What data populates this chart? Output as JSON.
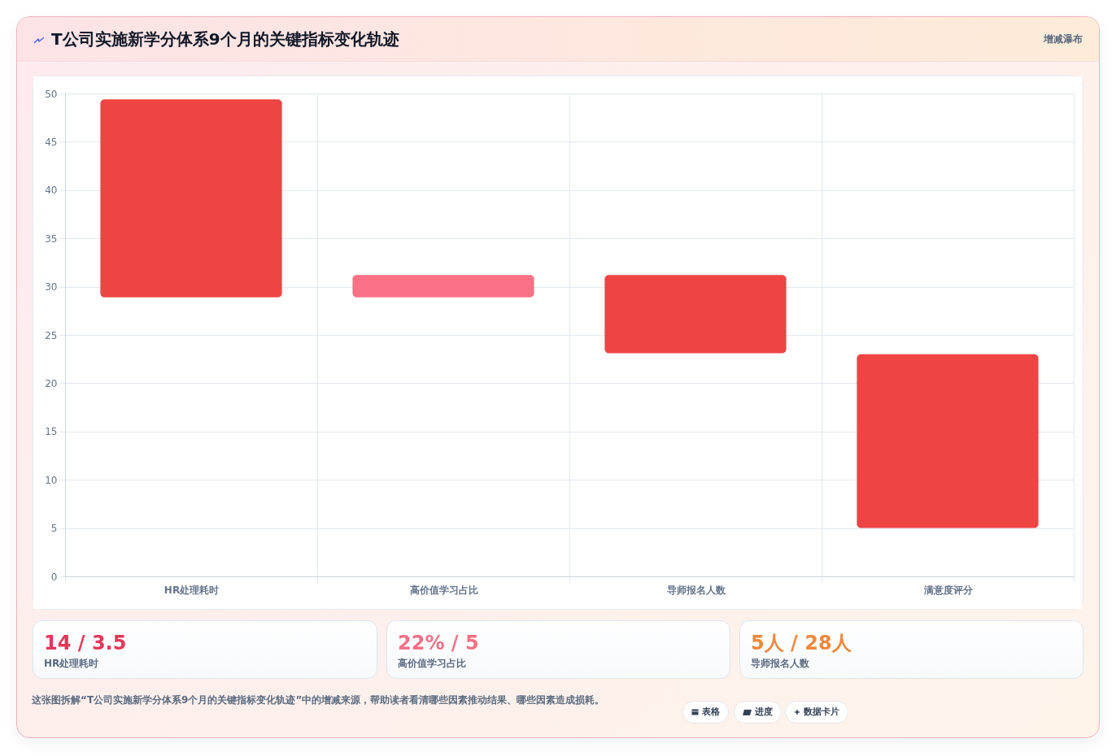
{
  "chart_data": [
    {
      "type": "bar",
      "title": "T公司实施新学分体系9个月的关键指标变化轨迹",
      "subtitle": "增减瀑布",
      "categories": [
        "HR处理耗时",
        "高价值学习占比",
        "导师报名人数",
        "满意度评分"
      ],
      "base": [
        28.9,
        28.9,
        23.1,
        5
      ],
      "values": [
        20.5,
        2.3,
        8.1,
        18
      ],
      "colors": [
        "#ef4444",
        "#fb7185",
        "#ef4444",
        "#ef4444"
      ],
      "ylim": [
        0,
        50
      ],
      "yticks": [
        0,
        5,
        10,
        15,
        20,
        25,
        30,
        35,
        40,
        45,
        50
      ],
      "grid": true,
      "annotations": [
        "这张图拆解“T公司实施新学分体系9个月的关键指标变化轨迹”中的增减来源，帮助读者看清哪些因素推动结果、哪些因素造成损耗。",
        "表格",
        "进度",
        "数据卡片"
      ]
    },
    {
      "type": "other",
      "title": "14 / 3.5",
      "subtitle": "HR处理耗时"
    },
    {
      "type": "other",
      "title": "22% / 5",
      "subtitle": "高价值学习占比"
    },
    {
      "type": "other",
      "title": "5人 / 28人",
      "subtitle": "导师报名人数"
    }
  ]
}
